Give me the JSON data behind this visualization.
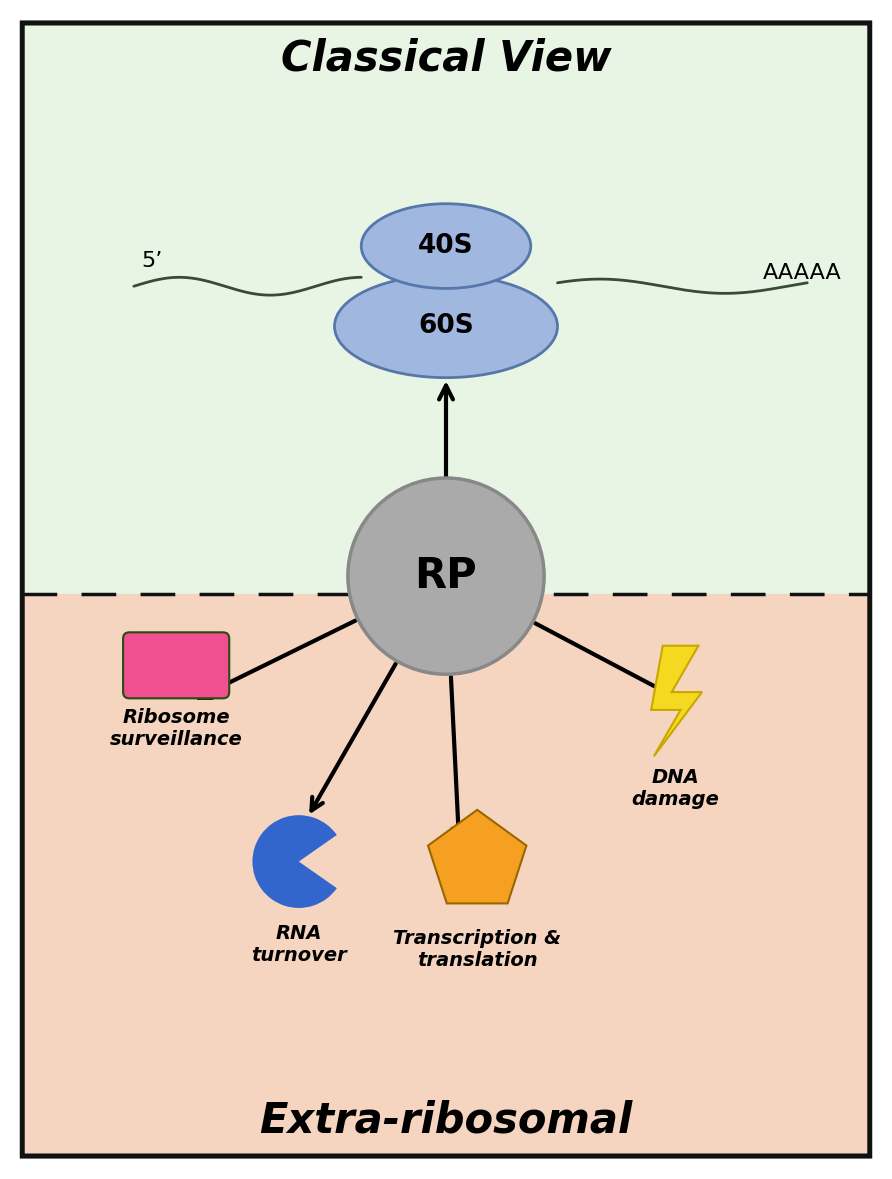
{
  "classical_view_text": "Classical View",
  "extraribosomal_text": "Extra-ribosomal",
  "rp_text": "RP",
  "s40_text": "40S",
  "s60_text": "60S",
  "five_prime_text": "5’",
  "aaaaa_text": "AAAAA",
  "bg_classical_color": "#e8f5e4",
  "bg_extra_color": "#f5d5c0",
  "border_color": "#111111",
  "ribosome_fill": "#a0b8e0",
  "ribosome_edge": "#5577aa",
  "rp_fill": "#aaaaaa",
  "rp_edge": "#888888",
  "arrow_color": "#000000",
  "rna_line_color": "#3a4a3a",
  "pink_rect_color": "#f05090",
  "blue_pacman_color": "#3366cc",
  "orange_penta_color": "#f5a020",
  "lightning_yellow": "#f5d820",
  "lightning_edge": "#c8a800",
  "dashed_line_color": "#111111",
  "fig_width": 8.92,
  "fig_height": 11.79,
  "dpi": 100
}
